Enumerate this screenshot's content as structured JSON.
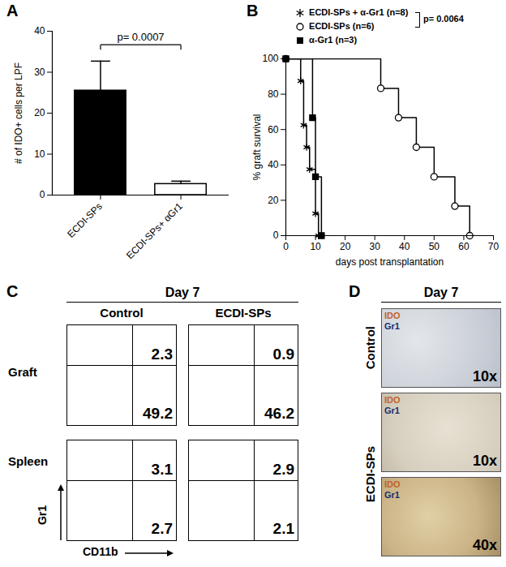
{
  "chart_data": [
    {
      "panel": "A",
      "type": "bar",
      "categories": [
        "ECDI-SPs",
        "ECDI-SPs+ αGr1"
      ],
      "values": [
        25.5,
        2.7
      ],
      "errors": [
        7.2,
        0.7
      ],
      "colors": [
        "#000000",
        "#ffffff"
      ],
      "y_label": "# of IDO+ cells per LPF",
      "ylim": [
        0,
        40
      ],
      "yticks": [
        0,
        10,
        20,
        30,
        40
      ],
      "annotation": "p= 0.0007"
    },
    {
      "panel": "B",
      "type": "step",
      "x_label": "days post transplantation",
      "y_label": "% graft survival",
      "xlim": [
        0,
        70
      ],
      "xticks": [
        0,
        10,
        20,
        30,
        40,
        50,
        60,
        70
      ],
      "ylim": [
        0,
        100
      ],
      "yticks": [
        0,
        20,
        40,
        60,
        80,
        100
      ],
      "annotation": "p= 0.0064",
      "series": [
        {
          "name": "ECDI-SPs + α-Gr1 (n=8)",
          "color": "#000000",
          "marker": "asterisk",
          "x": [
            0,
            5,
            6,
            7,
            8,
            10,
            11
          ],
          "values": [
            100,
            87.5,
            62.5,
            50,
            37.5,
            12.5,
            0
          ]
        },
        {
          "name": "ECDI-SPs (n=6)",
          "color": "#000000",
          "marker": "circle",
          "x": [
            0,
            32,
            38,
            44,
            50,
            57,
            62
          ],
          "values": [
            100,
            83.3,
            66.7,
            50,
            33.3,
            16.7,
            0
          ]
        },
        {
          "name": "α-Gr1 (n=3)",
          "color": "#000000",
          "marker": "square",
          "x": [
            0,
            9,
            10,
            12
          ],
          "values": [
            100,
            66.7,
            33.3,
            0
          ]
        }
      ]
    },
    {
      "panel": "C",
      "type": "flow_cytometry",
      "title": "Day 7",
      "x_label": "CD11b",
      "y_label": "Gr1",
      "columns": [
        "Control",
        "ECDI-SPs"
      ],
      "rows": [
        "Graft",
        "Spleen"
      ],
      "upper_right": [
        [
          2.3,
          0.9
        ],
        [
          3.1,
          2.9
        ]
      ],
      "lower_right": [
        [
          49.2,
          46.2
        ],
        [
          2.7,
          2.1
        ]
      ]
    },
    {
      "panel": "D",
      "type": "image",
      "title": "Day 7",
      "stain_labels": [
        {
          "text": "IDO",
          "color": "#c0622b"
        },
        {
          "text": "Gr1",
          "color": "#1b2f6e"
        }
      ],
      "images": [
        {
          "group": "Control",
          "magnification": "10x"
        },
        {
          "group": "ECDI-SPs",
          "magnification": "10x"
        },
        {
          "group": "ECDI-SPs",
          "magnification": "40x"
        }
      ]
    }
  ]
}
